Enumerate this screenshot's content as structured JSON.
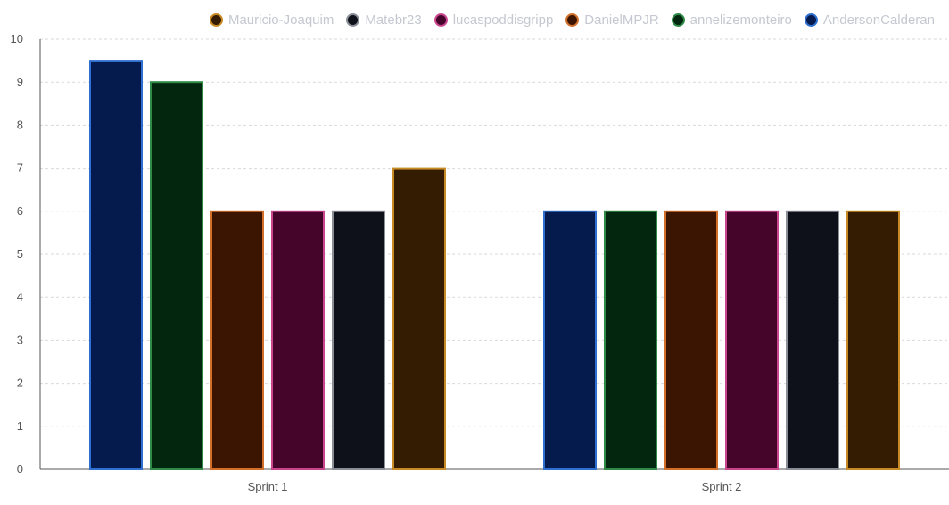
{
  "chart_data": {
    "type": "bar",
    "categories": [
      "Sprint 1",
      "Sprint 2"
    ],
    "ylim": [
      0,
      10
    ],
    "yticks": [
      0,
      1,
      2,
      3,
      4,
      5,
      6,
      7,
      8,
      9,
      10
    ],
    "grid": true,
    "legend_position": "top-right",
    "series": [
      {
        "name": "AndersonCalderan",
        "fill": "#051b4d",
        "stroke": "#2f6fcf",
        "values": [
          9.5,
          6
        ]
      },
      {
        "name": "annelizemonteiro",
        "fill": "#03260f",
        "stroke": "#2f8a45",
        "values": [
          9,
          6
        ]
      },
      {
        "name": "DanielMPJR",
        "fill": "#3c1502",
        "stroke": "#d2702a",
        "values": [
          6,
          6
        ]
      },
      {
        "name": "lucaspoddisgripp",
        "fill": "#45052b",
        "stroke": "#c9468e",
        "values": [
          6,
          6
        ]
      },
      {
        "name": "Matebr23",
        "fill": "#0e1119",
        "stroke": "#8a8e96",
        "values": [
          6,
          6
        ]
      },
      {
        "name": "Mauricio-Joaquim",
        "fill": "#331c02",
        "stroke": "#c88a24",
        "values": [
          7,
          6
        ]
      }
    ],
    "legend_order": [
      "Mauricio-Joaquim",
      "Matebr23",
      "lucaspoddisgripp",
      "DanielMPJR",
      "annelizemonteiro",
      "AndersonCalderan"
    ]
  }
}
